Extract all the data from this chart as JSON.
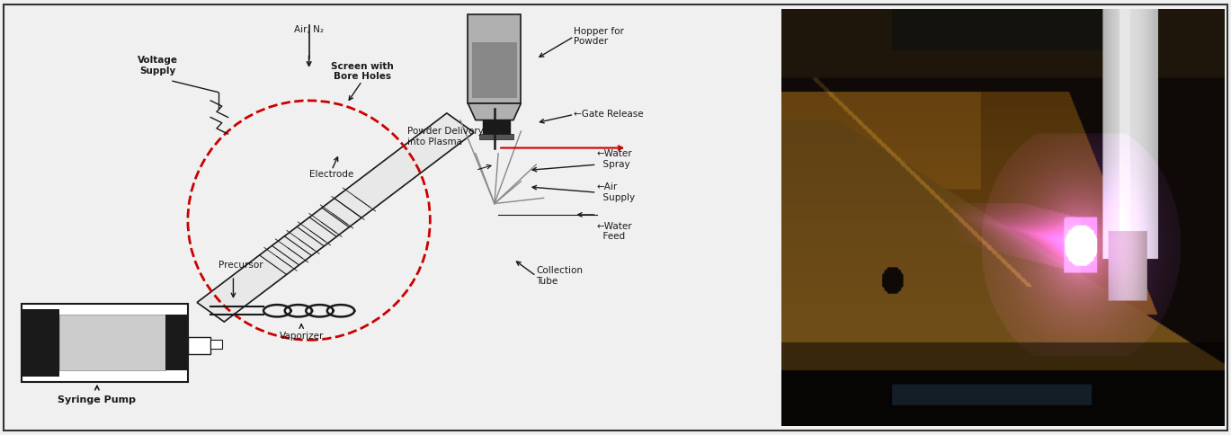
{
  "figure_width": 13.69,
  "figure_height": 4.84,
  "dpi": 100,
  "background_color": "#f0f0f0",
  "border_color": "#555555",
  "labels": {
    "air_n2": "Air, N₂",
    "voltage_supply": "Voltage\nSupply",
    "screen_bore": "Screen with\nBore Holes",
    "hopper": "Hopper for\nPowder",
    "gate_release": "←Gate Release",
    "electrode": "Electrode",
    "powder_delivery": "Powder Delivery\ninto Plasma",
    "water_spray": "←Water\n  Spray",
    "air_supply": "←Air\n  Supply",
    "water_feed": "←Water\n  Feed",
    "precursor": "Precursor",
    "vaporizer": "Vaporizer",
    "collection_tube": "Collection\nTube",
    "syringe_pump": "Syringe Pump"
  },
  "dashed_circle_color": "#cc0000",
  "diagram_color": "#1a1a1a",
  "font_size": 7.5
}
